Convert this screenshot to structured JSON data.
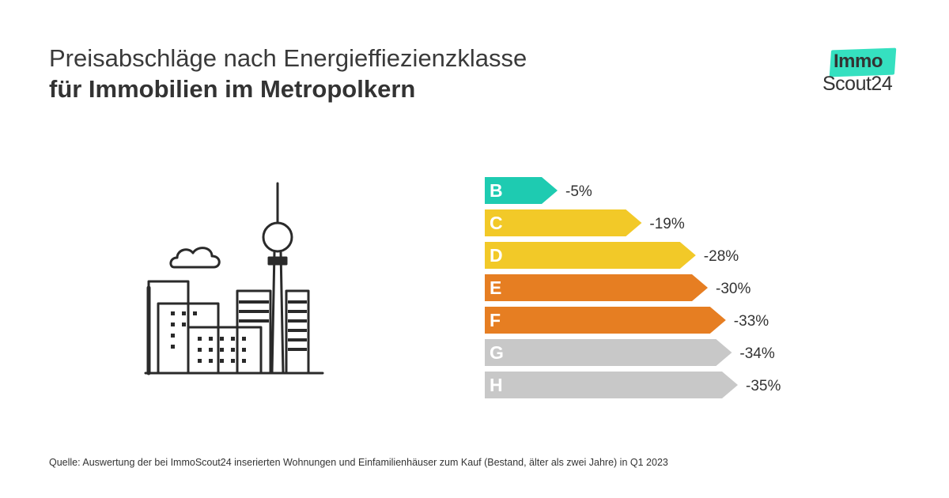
{
  "title": {
    "line1": "Preisabschläge nach Energieffiezienzklasse",
    "line2": "für Immobilien im Metropolkern"
  },
  "logo": {
    "top": "Immo",
    "bottom": "Scout24",
    "accent_color": "#35e0c0"
  },
  "chart_data": {
    "type": "bar",
    "orientation": "horizontal",
    "title": "Preisabschläge nach Energieffiezienzklasse für Immobilien im Metropolkern",
    "categories": [
      "B",
      "C",
      "D",
      "E",
      "F",
      "G",
      "H"
    ],
    "values": [
      -5,
      -19,
      -28,
      -30,
      -33,
      -34,
      -35
    ],
    "labels": [
      "-5%",
      "-19%",
      "-28%",
      "-30%",
      "-33%",
      "-34%",
      "-35%"
    ],
    "colors": [
      "#1ecbb1",
      "#f2c928",
      "#f2c928",
      "#e67e22",
      "#e67e22",
      "#c8c8c8",
      "#c8c8c8"
    ],
    "unit": "%",
    "xlim": [
      0,
      -35
    ],
    "grid": false,
    "legend": "none"
  },
  "source": "Quelle: Auswertung der bei ImmoScout24 inserierten Wohnungen und Einfamilienhäuser zum Kauf  (Bestand, älter als zwei Jahre)  in Q1 2023",
  "illustration": "city-skyline-icon"
}
